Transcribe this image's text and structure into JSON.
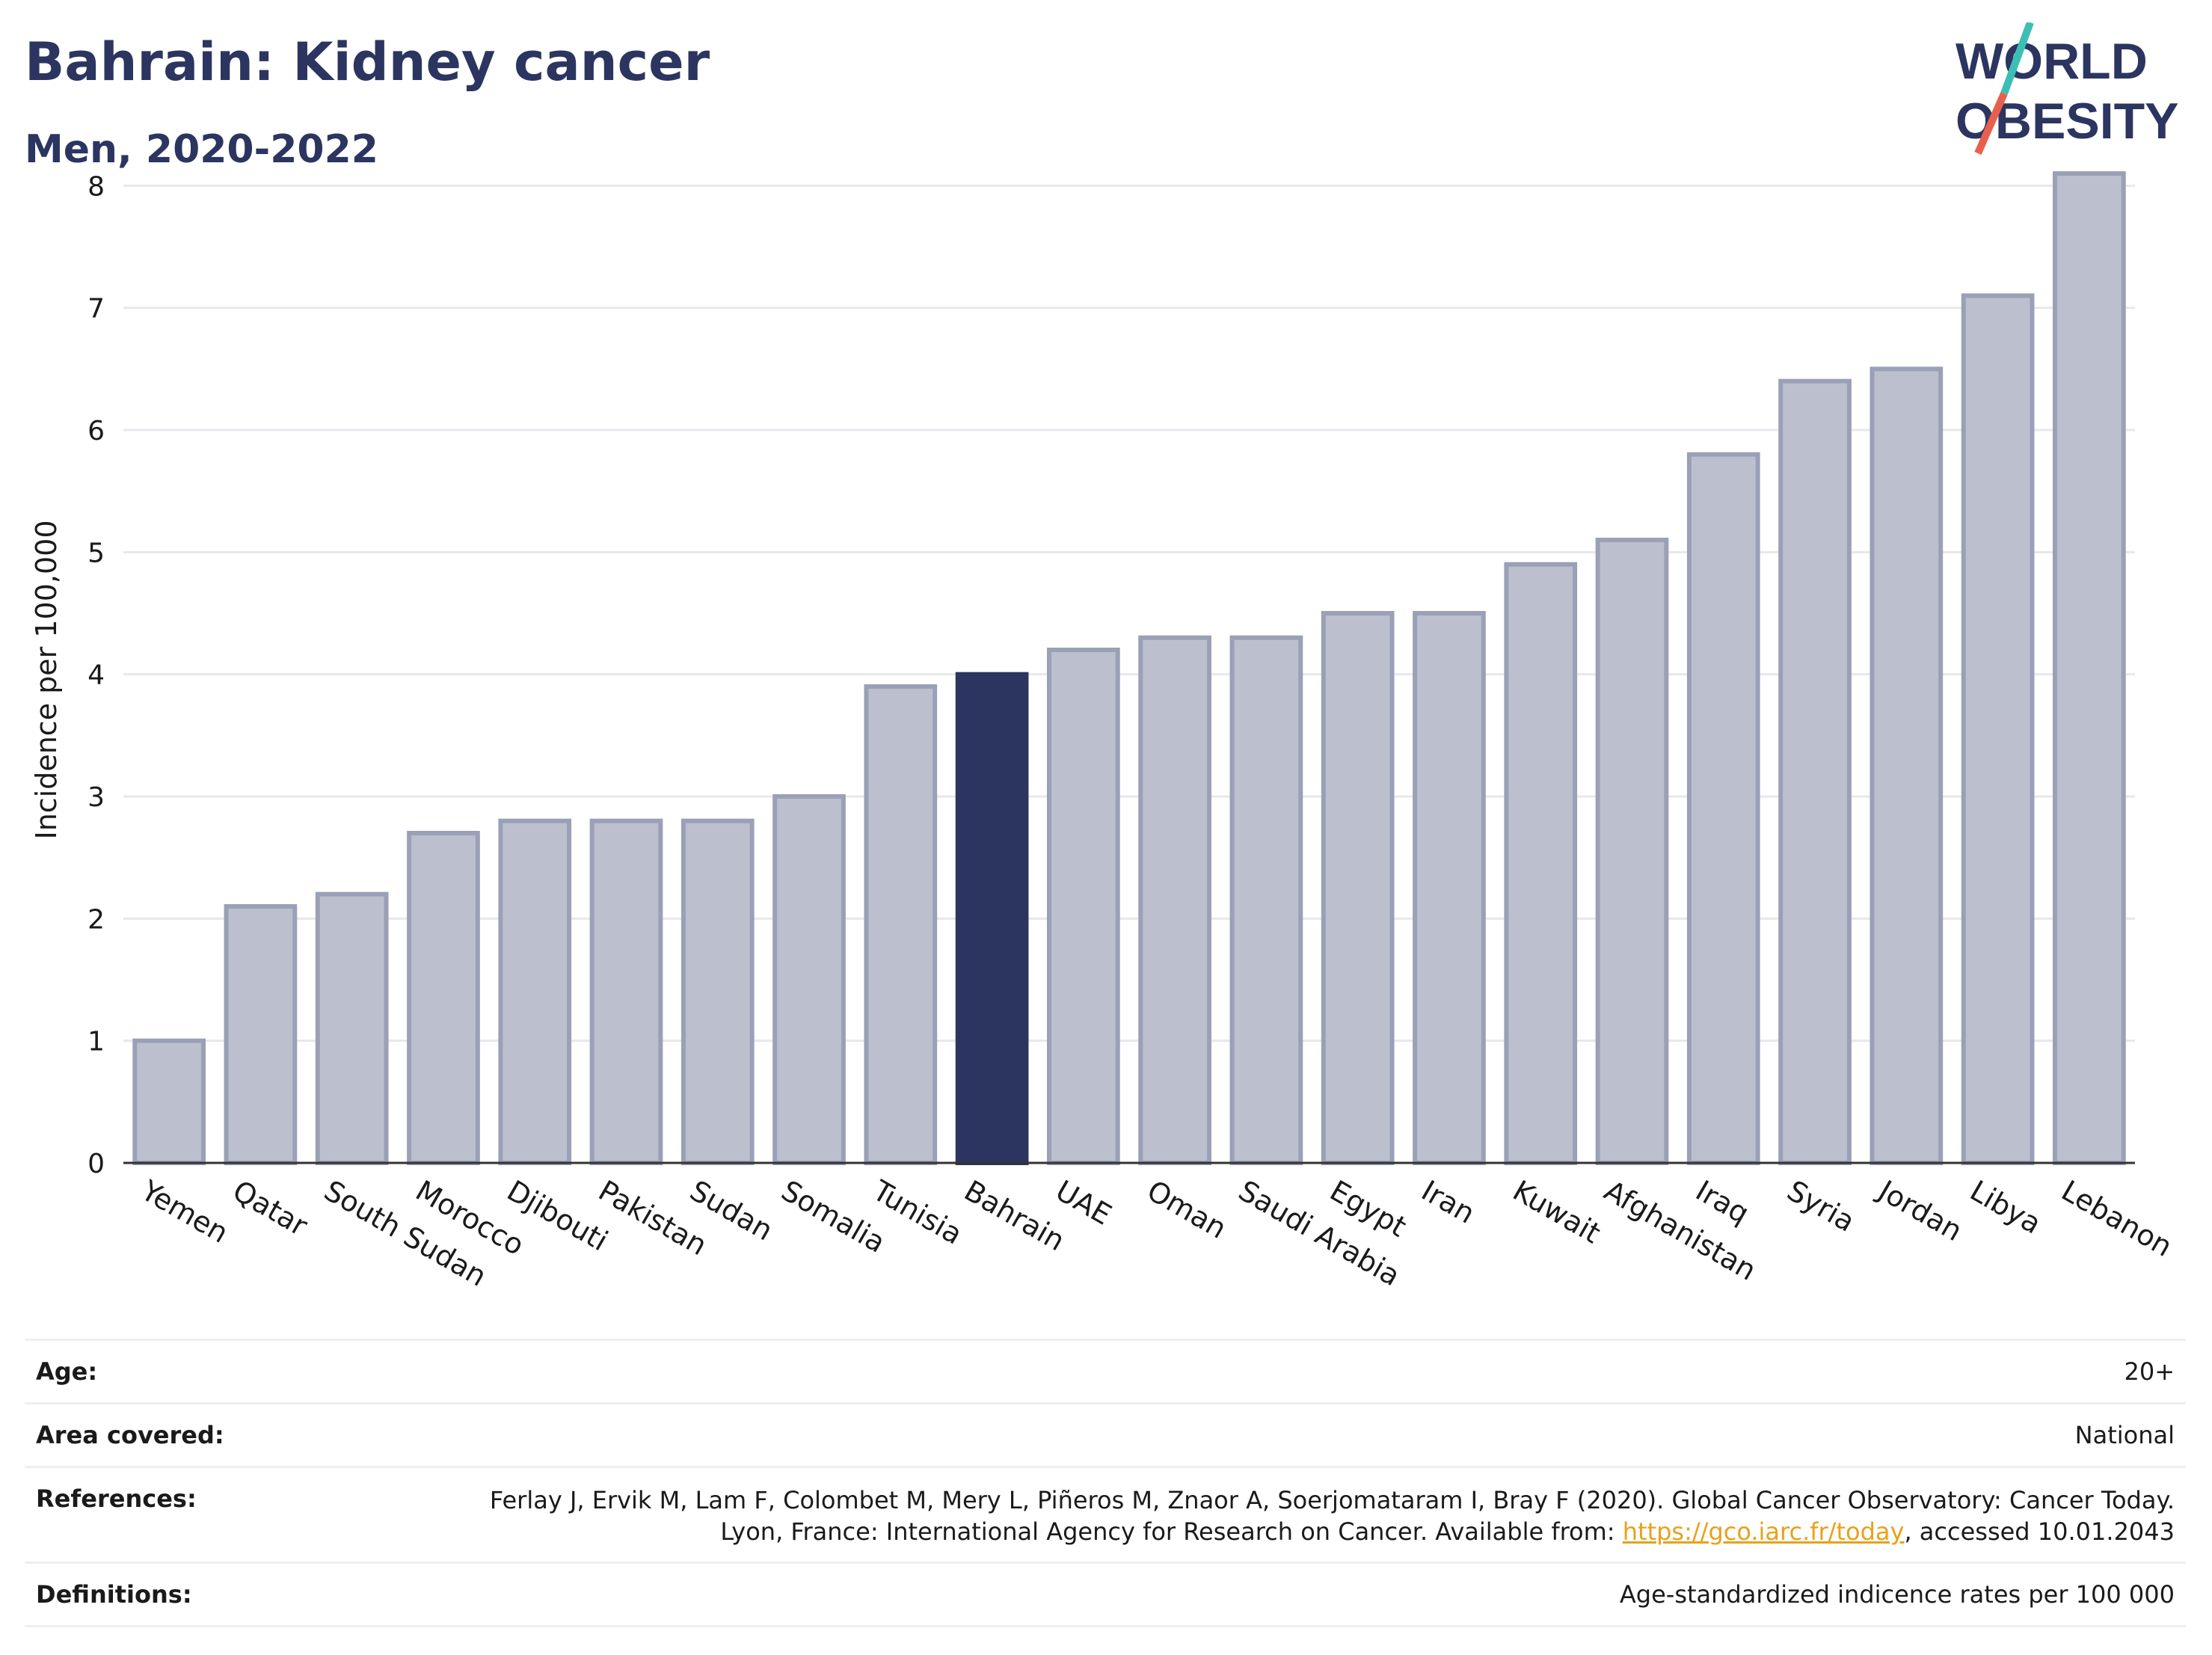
{
  "header": {
    "title": "Bahrain: Kidney cancer",
    "subtitle": "Men, 2020-2022"
  },
  "logo": {
    "line1": "WORLD",
    "line2": "OBESITY"
  },
  "chart_data": {
    "type": "bar",
    "ylabel": "Incidence per 100,000",
    "ylim": [
      0,
      8.4
    ],
    "yticks": [
      0,
      1,
      2,
      3,
      4,
      5,
      6,
      7,
      8
    ],
    "highlight": "Bahrain",
    "colors": {
      "bar": "#bcc0ce",
      "bar_border": "#9aa0b6",
      "highlight": "#2b3560",
      "grid": "#e6e8ee",
      "axis": "#333333"
    },
    "categories": [
      "Yemen",
      "Qatar",
      "South Sudan",
      "Morocco",
      "Djibouti",
      "Pakistan",
      "Sudan",
      "Somalia",
      "Tunisia",
      "Bahrain",
      "UAE",
      "Oman",
      "Saudi Arabia",
      "Egypt",
      "Iran",
      "Kuwait",
      "Afghanistan",
      "Iraq",
      "Syria",
      "Jordan",
      "Libya",
      "Lebanon"
    ],
    "values": [
      1.0,
      2.1,
      2.2,
      2.7,
      2.8,
      2.8,
      2.8,
      3.0,
      3.9,
      4.0,
      4.2,
      4.3,
      4.3,
      4.5,
      4.5,
      4.9,
      5.1,
      5.8,
      6.4,
      6.5,
      7.1,
      8.1
    ]
  },
  "info": {
    "age_label": "Age:",
    "age_value": "20+",
    "area_label": "Area covered:",
    "area_value": "National",
    "references_label": "References:",
    "references_text": "Ferlay J, Ervik M, Lam F, Colombet M, Mery L, Piñeros M, Znaor A, Soerjomataram I, Bray F (2020). Global Cancer Observatory: Cancer Today. Lyon, France: International Agency for Research on Cancer. Available from: ",
    "references_link": "https://gco.iarc.fr/today",
    "references_suffix": ", accessed 10.01.2043",
    "definitions_label": "Definitions:",
    "definitions_value": "Age-standardized indicence rates per 100 000"
  }
}
